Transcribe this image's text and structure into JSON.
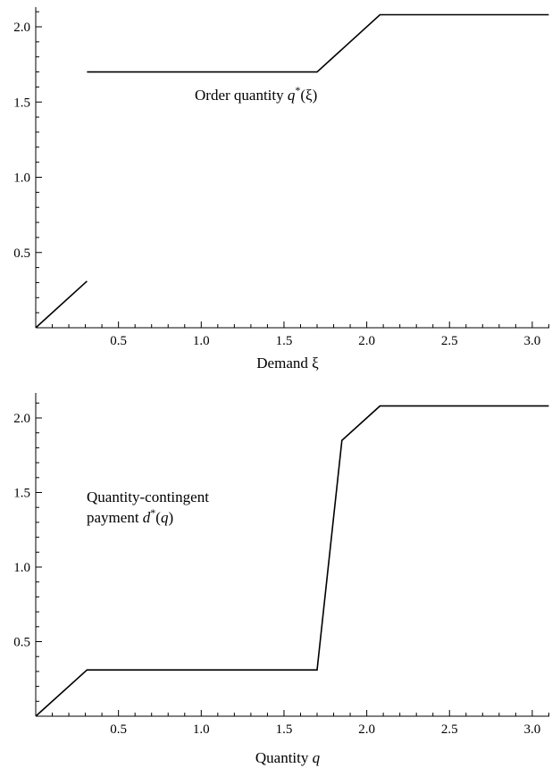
{
  "chart_data": [
    {
      "type": "line",
      "title": "",
      "xlabel": "Demand ξ",
      "ylabel": "",
      "xlim": [
        0,
        3.1
      ],
      "ylim": [
        0,
        2.2
      ],
      "x_ticks": [
        "0.5",
        "1.0",
        "1.5",
        "2.0",
        "2.5",
        "3.0"
      ],
      "y_ticks": [
        "0.5",
        "1.0",
        "1.5",
        "2.0"
      ],
      "grid": false,
      "annotation": {
        "prefix": "Order quantity ",
        "var": "q",
        "sup": "*",
        "suffix": "(ξ)"
      },
      "series": [
        {
          "points": [
            [
              0.0,
              0.0
            ],
            [
              0.31,
              0.31
            ]
          ]
        },
        {
          "points": [
            [
              0.31,
              1.7
            ],
            [
              1.7,
              1.7
            ],
            [
              2.08,
              2.08
            ],
            [
              3.1,
              2.08
            ]
          ]
        }
      ]
    },
    {
      "type": "line",
      "title": "",
      "xlabel_prefix": "Quantity ",
      "xlabel_var": "q",
      "ylabel": "",
      "xlim": [
        0,
        3.1
      ],
      "ylim": [
        0,
        2.2
      ],
      "x_ticks": [
        "0.5",
        "1.0",
        "1.5",
        "2.0",
        "2.5",
        "3.0"
      ],
      "y_ticks": [
        "0.5",
        "1.0",
        "1.5",
        "2.0"
      ],
      "grid": false,
      "annotation": {
        "line1": "Quantity-contingent",
        "prefix": "payment ",
        "var": "d",
        "sup": "*",
        "suffix_open": "(",
        "suffix_var": "q",
        "suffix_close": ")"
      },
      "series": [
        {
          "points": [
            [
              0.0,
              0.0
            ],
            [
              0.31,
              0.31
            ],
            [
              1.7,
              0.31
            ],
            [
              1.85,
              1.85
            ],
            [
              2.08,
              2.08
            ],
            [
              3.1,
              2.08
            ]
          ]
        }
      ]
    }
  ]
}
